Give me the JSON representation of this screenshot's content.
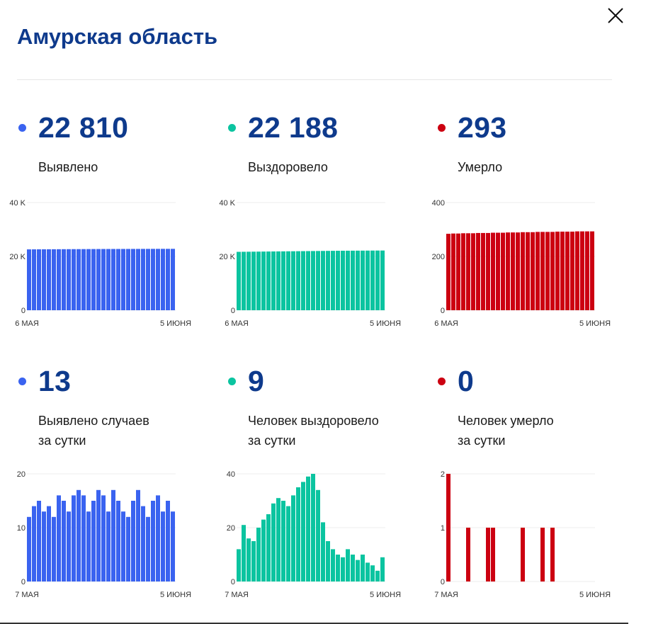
{
  "title": "Амурская область",
  "close_icon": "close-icon",
  "panels": [
    {
      "value": "22 810",
      "label_lines": [
        "Выявлено"
      ],
      "color": "#3a63f0",
      "chart_data": {
        "type": "bar",
        "x_start": "6 МАЯ",
        "x_end": "5 ИЮНЯ",
        "ylim": [
          0,
          40000
        ],
        "yticks": [
          0,
          20000,
          40000
        ],
        "ytick_labels": [
          "0",
          "20 K",
          "40 K"
        ],
        "values": [
          22610,
          22620,
          22630,
          22640,
          22650,
          22660,
          22670,
          22680,
          22690,
          22700,
          22705,
          22715,
          22725,
          22735,
          22745,
          22750,
          22755,
          22760,
          22765,
          22770,
          22775,
          22780,
          22785,
          22790,
          22795,
          22800,
          22805,
          22808,
          22810,
          22810
        ]
      }
    },
    {
      "value": "22 188",
      "label_lines": [
        "Выздоровело"
      ],
      "color": "#0bc4a0",
      "chart_data": {
        "type": "bar",
        "x_start": "6 МАЯ",
        "x_end": "5 ИЮНЯ",
        "ylim": [
          0,
          40000
        ],
        "yticks": [
          0,
          20000,
          40000
        ],
        "ytick_labels": [
          "0",
          "20 K",
          "40 K"
        ],
        "values": [
          21700,
          21720,
          21740,
          21760,
          21780,
          21800,
          21820,
          21840,
          21860,
          21880,
          21900,
          21920,
          21940,
          21960,
          21980,
          22000,
          22020,
          22040,
          22060,
          22080,
          22100,
          22110,
          22120,
          22130,
          22140,
          22150,
          22160,
          22170,
          22180,
          22188
        ]
      }
    },
    {
      "value": "293",
      "label_lines": [
        "Умерло"
      ],
      "color": "#cc0011",
      "chart_data": {
        "type": "bar",
        "x_start": "6 МАЯ",
        "x_end": "5 ИЮНЯ",
        "ylim": [
          0,
          400
        ],
        "yticks": [
          0,
          200,
          400
        ],
        "ytick_labels": [
          "0",
          "200",
          "400"
        ],
        "values": [
          284,
          285,
          285,
          286,
          286,
          286,
          287,
          287,
          287,
          288,
          288,
          288,
          289,
          289,
          289,
          290,
          290,
          290,
          291,
          291,
          291,
          291,
          292,
          292,
          292,
          292,
          293,
          293,
          293,
          293
        ]
      }
    },
    {
      "value": "13",
      "label_lines": [
        "Выявлено случаев",
        "за сутки"
      ],
      "color": "#3a63f0",
      "chart_data": {
        "type": "bar",
        "x_start": "7 МАЯ",
        "x_end": "5 ИЮНЯ",
        "ylim": [
          0,
          20
        ],
        "yticks": [
          0,
          10,
          20
        ],
        "ytick_labels": [
          "0",
          "10",
          "20"
        ],
        "values": [
          12,
          14,
          15,
          13,
          14,
          12,
          16,
          15,
          13,
          16,
          17,
          16,
          13,
          15,
          17,
          16,
          13,
          17,
          15,
          13,
          12,
          15,
          17,
          14,
          12,
          15,
          16,
          13,
          15,
          13
        ]
      }
    },
    {
      "value": "9",
      "label_lines": [
        "Человек выздоровело",
        "за сутки"
      ],
      "color": "#0bc4a0",
      "chart_data": {
        "type": "bar",
        "x_start": "7 МАЯ",
        "x_end": "5 ИЮНЯ",
        "ylim": [
          0,
          40
        ],
        "yticks": [
          0,
          20,
          40
        ],
        "ytick_labels": [
          "0",
          "20",
          "40"
        ],
        "values": [
          12,
          21,
          16,
          15,
          20,
          23,
          25,
          29,
          31,
          30,
          28,
          32,
          35,
          37,
          39,
          40,
          34,
          22,
          15,
          12,
          10,
          9,
          12,
          10,
          8,
          10,
          7,
          6,
          4,
          9
        ]
      }
    },
    {
      "value": "0",
      "label_lines": [
        "Человек умерло",
        "за сутки"
      ],
      "color": "#cc0011",
      "chart_data": {
        "type": "bar",
        "x_start": "7 МАЯ",
        "x_end": "5 ИЮНЯ",
        "ylim": [
          0,
          2
        ],
        "yticks": [
          0,
          1,
          2
        ],
        "ytick_labels": [
          "0",
          "1",
          "2"
        ],
        "values": [
          2,
          0,
          0,
          0,
          1,
          0,
          0,
          0,
          1,
          1,
          0,
          0,
          0,
          0,
          0,
          1,
          0,
          0,
          0,
          1,
          0,
          1,
          0,
          0,
          0,
          0,
          0,
          0,
          0,
          0
        ]
      }
    }
  ]
}
